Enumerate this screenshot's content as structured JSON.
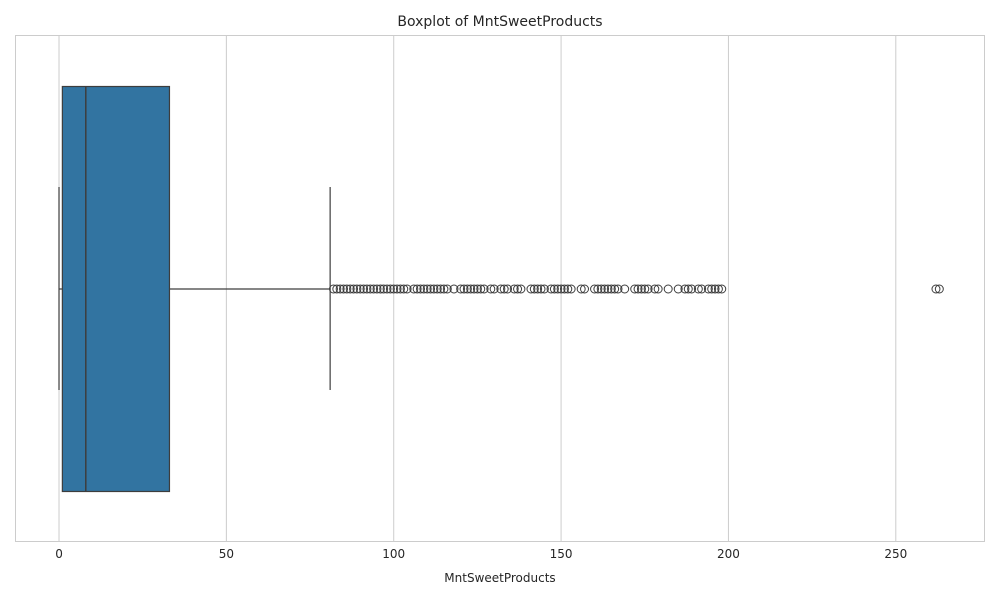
{
  "chart_data": {
    "type": "boxplot",
    "title": "Boxplot of MntSweetProducts",
    "xlabel": "MntSweetProducts",
    "ylabel": "",
    "orientation": "horizontal",
    "xlim": [
      -13,
      276.5
    ],
    "xticks": [
      0,
      50,
      100,
      150,
      200,
      250
    ],
    "grid": "vertical",
    "box": {
      "whisker_low": 0,
      "q1": 1,
      "median": 8,
      "q3": 33,
      "whisker_high": 81,
      "color": "#3274a1",
      "edge_color": "#3d3d3d"
    },
    "outliers": [
      82,
      83,
      84,
      85,
      86,
      87,
      88,
      89,
      90,
      91,
      92,
      93,
      94,
      95,
      96,
      97,
      98,
      99,
      100,
      101,
      102,
      103,
      104,
      106,
      107,
      108,
      109,
      110,
      111,
      112,
      113,
      114,
      115,
      116,
      118,
      120,
      121,
      122,
      123,
      124,
      125,
      126,
      127,
      129,
      130,
      132,
      133,
      134,
      136,
      137,
      138,
      141,
      142,
      143,
      144,
      145,
      147,
      148,
      149,
      150,
      151,
      152,
      153,
      156,
      157,
      160,
      161,
      162,
      163,
      164,
      165,
      166,
      167,
      169,
      172,
      173,
      174,
      175,
      176,
      178,
      179,
      182,
      185,
      187,
      188,
      189,
      191,
      192,
      194,
      195,
      196,
      197,
      198,
      262,
      263
    ]
  }
}
